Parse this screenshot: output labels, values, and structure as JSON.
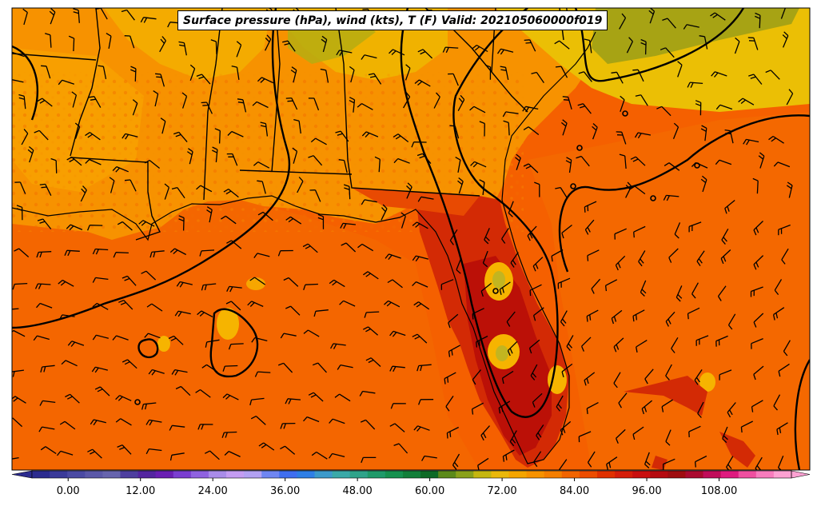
{
  "title": "Surface pressure (hPa), wind (kts), T (F) Valid: 202105060000f019",
  "colorbar": {
    "ticks": [
      "0.00",
      "12.00",
      "24.00",
      "36.00",
      "48.00",
      "60.00",
      "72.00",
      "84.00",
      "96.00",
      "108.00"
    ],
    "tick_values": [
      0,
      12,
      24,
      36,
      48,
      60,
      72,
      84,
      96,
      108
    ],
    "range": [
      -6,
      120
    ],
    "step": 3,
    "colors": [
      "#2b2b8f",
      "#3a3a99",
      "#4a4aa3",
      "#5a58a8",
      "#6664ad",
      "#4e3f9f",
      "#5426a0",
      "#6a1fb3",
      "#7a3ed0",
      "#8f62e0",
      "#a98ce9",
      "#c49cf2",
      "#b2a1f2",
      "#6f86f2",
      "#3f6ef0",
      "#2f7fe6",
      "#3c9acb",
      "#3aa9a8",
      "#2fa38a",
      "#1f9a6a",
      "#16914f",
      "#127f3a",
      "#0d6a26",
      "#5b8a1a",
      "#8aa11a",
      "#c5b60f",
      "#eab80a",
      "#f5a500",
      "#f79200",
      "#f57e00",
      "#f26400",
      "#ec4c00",
      "#e03000",
      "#d51d0a",
      "#c90f0f",
      "#b50a10",
      "#9e0d10",
      "#aa0a30",
      "#c00c5a",
      "#de1a7f",
      "#ef4fa0",
      "#f77cbd",
      "#fca1d2"
    ]
  },
  "colors": {
    "gulf": "#f56000",
    "land_warm": "#f79200",
    "land_mild": "#f4ab00",
    "land_cool": "#ebbf05",
    "olive": "#a7a314",
    "peninsula": "#d32a05",
    "peninsula_hot": "#bb1007",
    "isobar": "#000000"
  }
}
